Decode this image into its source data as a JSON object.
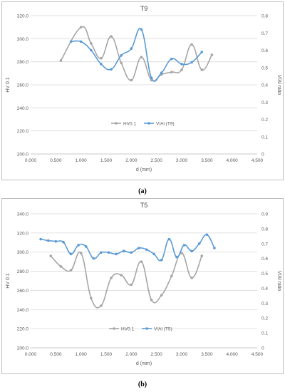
{
  "chart_data": [
    {
      "type": "line",
      "title": "T9",
      "xlabel": "d (mm)",
      "ylabel": "HV 0.1",
      "y2label": "V/Al ratio",
      "xlim": [
        0,
        4.5
      ],
      "ylim": [
        200,
        320
      ],
      "y2lim": [
        0,
        0.8
      ],
      "xticks": [
        "0.000",
        "0.500",
        "1.000",
        "1.500",
        "2.000",
        "2.500",
        "3.000",
        "3.500",
        "4.000",
        "4.500"
      ],
      "yticks": [
        "200.0",
        "220.0",
        "240.0",
        "260.0",
        "280.0",
        "300.0",
        "320.0"
      ],
      "y2ticks": [
        "0",
        "0.1",
        "0.2",
        "0.3",
        "0.4",
        "0.5",
        "0.6",
        "0.7",
        "0.8"
      ],
      "legend_position": "bottom-center",
      "grid": true,
      "series": [
        {
          "name": "HV0.1",
          "axis": "left",
          "color": "#a6a6a6",
          "x": [
            0.6,
            1.0,
            1.2,
            1.4,
            1.6,
            1.8,
            2.0,
            2.2,
            2.4,
            2.6,
            2.8,
            3.0,
            3.2,
            3.4,
            3.6
          ],
          "y": [
            281,
            310,
            296,
            283,
            302,
            279,
            264,
            284,
            264,
            269,
            271,
            273,
            295,
            273,
            286
          ]
        },
        {
          "name": "V/Al (T9)",
          "axis": "right",
          "color": "#5b9bd5",
          "x": [
            0.8,
            1.0,
            1.2,
            1.4,
            1.6,
            1.8,
            2.0,
            2.2,
            2.4,
            2.6,
            2.8,
            3.0,
            3.2,
            3.4
          ],
          "y": [
            0.65,
            0.65,
            0.6,
            0.52,
            0.49,
            0.57,
            0.61,
            0.72,
            0.44,
            0.47,
            0.55,
            0.52,
            0.53,
            0.59
          ]
        }
      ]
    },
    {
      "type": "line",
      "title": "T5",
      "xlabel": "d (mm)",
      "ylabel": "HV 0.1",
      "y2label": "V/Al ratio",
      "xlim": [
        0,
        4.5
      ],
      "ylim": [
        200,
        340
      ],
      "y2lim": [
        0,
        0.9
      ],
      "xticks": [
        "0.000",
        "0.500",
        "1.000",
        "1.500",
        "2.000",
        "2.500",
        "3.000",
        "3.500",
        "4.000",
        "4.500"
      ],
      "yticks": [
        "200.0",
        "220.0",
        "240.0",
        "260.0",
        "280.0",
        "300.0",
        "320.0",
        "340.0"
      ],
      "y2ticks": [
        "0",
        "0.1",
        "0.2",
        "0.3",
        "0.4",
        "0.5",
        "0.6",
        "0.7",
        "0.8",
        "0.9"
      ],
      "legend_position": "bottom-center",
      "grid": true,
      "series": [
        {
          "name": "HV0.1",
          "axis": "left",
          "color": "#a6a6a6",
          "x": [
            0.4,
            0.6,
            0.8,
            1.0,
            1.2,
            1.4,
            1.6,
            1.8,
            2.0,
            2.2,
            2.4,
            2.6,
            2.8,
            3.0,
            3.2,
            3.4
          ],
          "y": [
            296,
            285,
            281,
            299,
            252,
            244,
            273,
            276,
            266,
            290,
            250,
            255,
            275,
            299,
            273,
            296
          ]
        },
        {
          "name": "V/Al (T5)",
          "axis": "right",
          "color": "#5b9bd5",
          "x": [
            0.2,
            0.35,
            0.5,
            0.65,
            0.8,
            0.95,
            1.1,
            1.25,
            1.4,
            1.55,
            1.7,
            1.85,
            2.0,
            2.15,
            2.3,
            2.45,
            2.6,
            2.75,
            2.9,
            3.05,
            3.2,
            3.35,
            3.5,
            3.65
          ],
          "y": [
            0.73,
            0.72,
            0.715,
            0.71,
            0.63,
            0.69,
            0.68,
            0.6,
            0.64,
            0.64,
            0.63,
            0.65,
            0.64,
            0.67,
            0.66,
            0.63,
            0.59,
            0.73,
            0.61,
            0.69,
            0.65,
            0.7,
            0.76,
            0.67
          ]
        }
      ]
    }
  ],
  "labels": {
    "a": "(a)",
    "b": "(b)"
  }
}
